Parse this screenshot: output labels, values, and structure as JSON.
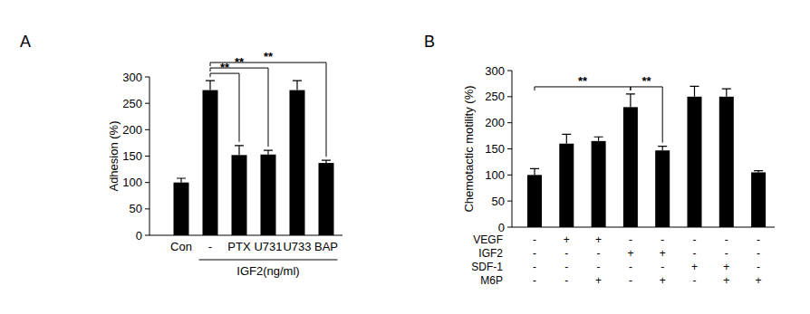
{
  "chart_data": [
    {
      "type": "bar",
      "title": "A",
      "y_label": "Adhesion (%)",
      "categories": [
        "Con",
        "-",
        "PTX",
        "U731",
        "U733",
        "BAP"
      ],
      "values": [
        100,
        275,
        152,
        153,
        275,
        137
      ],
      "errors": [
        8,
        18,
        18,
        8,
        18,
        5
      ],
      "color": "#000000",
      "ylim": [
        0,
        300
      ],
      "yticks": [
        0,
        50,
        100,
        150,
        200,
        250,
        300
      ],
      "group_label": {
        "text": "IGF2(ng/ml)",
        "from": 1,
        "to": 5
      },
      "significance": [
        {
          "from": 1,
          "to": 2,
          "label": "**"
        },
        {
          "from": 1,
          "to": 3,
          "label": "**"
        },
        {
          "from": 1,
          "to": 5,
          "label": "**"
        }
      ]
    },
    {
      "type": "bar",
      "title": "B",
      "y_label": "Chemotactic motility (%)",
      "categories": [
        null,
        null,
        null,
        null,
        null,
        null,
        null,
        null
      ],
      "values": [
        100,
        160,
        165,
        230,
        147,
        250,
        250,
        105
      ],
      "errors": [
        12,
        18,
        8,
        25,
        8,
        20,
        15,
        3
      ],
      "color": "#000000",
      "ylim": [
        0,
        300
      ],
      "yticks": [
        0,
        50,
        100,
        150,
        200,
        250,
        300
      ],
      "conditions": [
        {
          "name": "VEGF",
          "values": [
            "-",
            "+",
            "+",
            "-",
            "-",
            "-",
            "-",
            "-"
          ]
        },
        {
          "name": "IGF2",
          "values": [
            "-",
            "-",
            "-",
            "+",
            "+",
            "-",
            "-",
            "-"
          ]
        },
        {
          "name": "SDF-1",
          "values": [
            "-",
            "-",
            "-",
            "-",
            "-",
            "+",
            "+",
            "-"
          ]
        },
        {
          "name": "M6P",
          "values": [
            "-",
            "-",
            "+",
            "-",
            "+",
            "-",
            "+",
            "+"
          ]
        }
      ],
      "significance": [
        {
          "from": 0,
          "to": 3,
          "label": "**"
        },
        {
          "from": 3,
          "to": 4,
          "label": "**"
        }
      ]
    }
  ]
}
